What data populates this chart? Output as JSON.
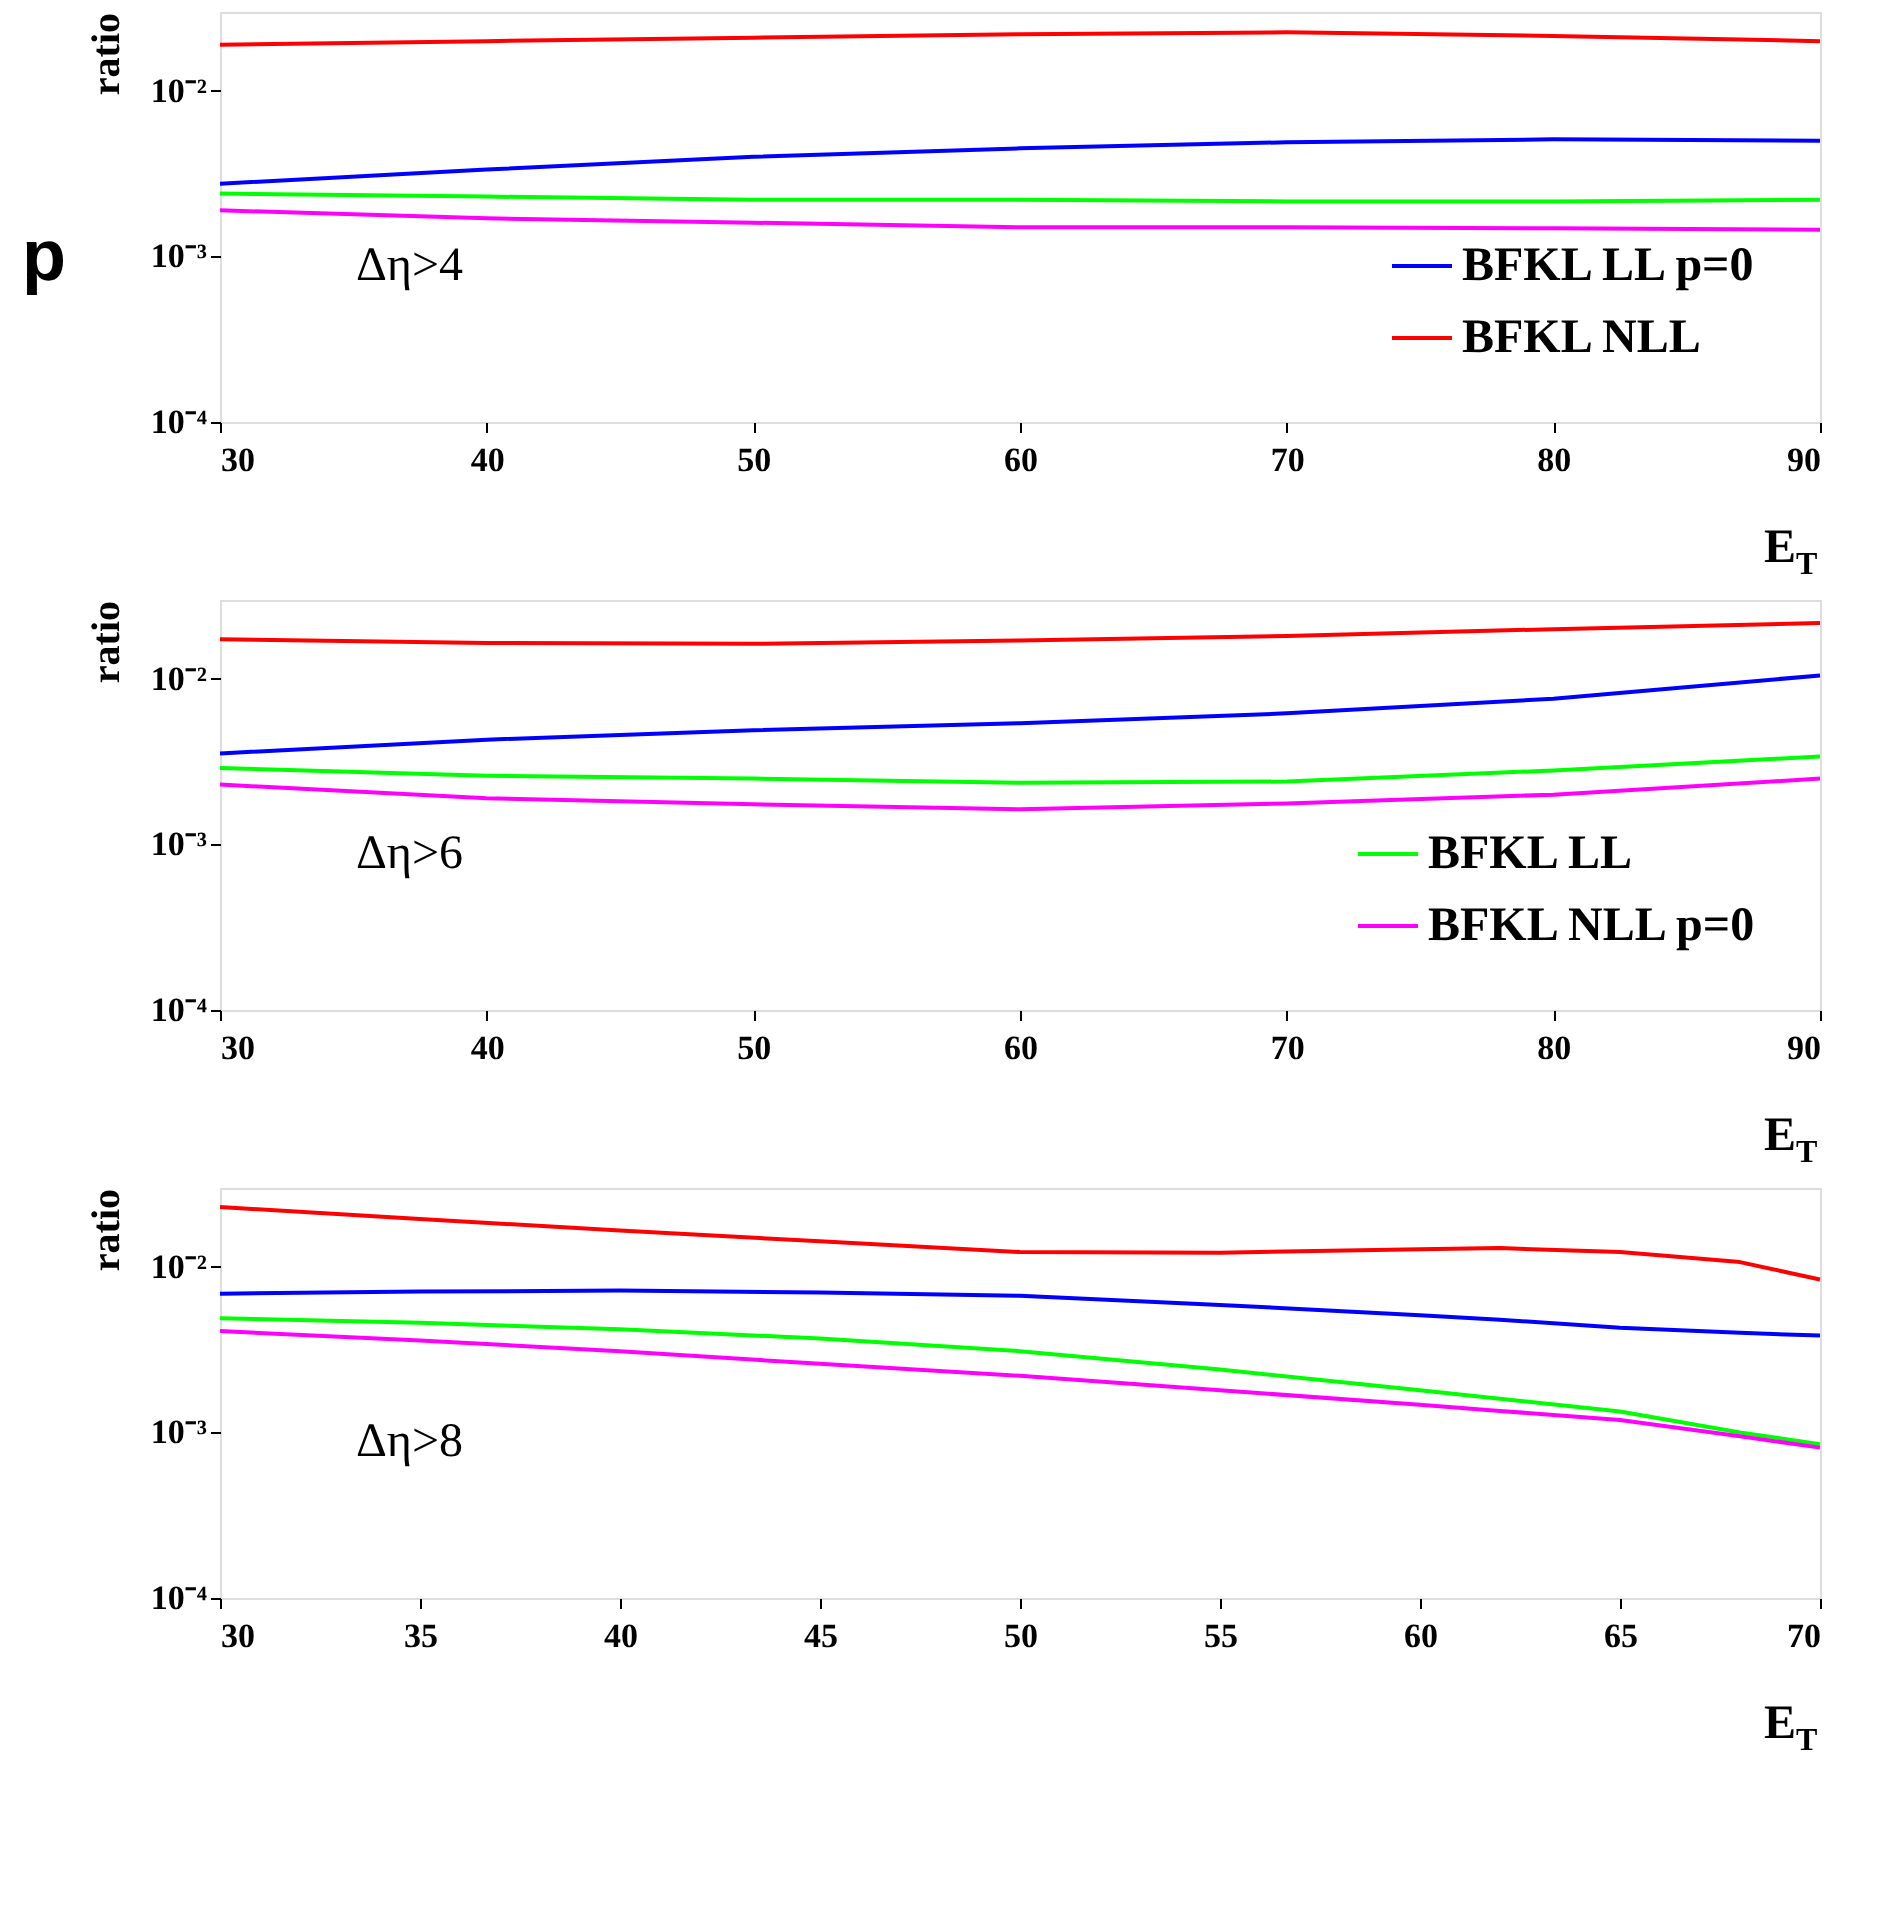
{
  "chart_data": [
    {
      "type": "line",
      "xlabel": "E$_{T}$",
      "ylabel": "ratio",
      "annotations": [
        "Δη>4",
        "p"
      ],
      "log": "y",
      "grid": false,
      "legend": "bottom right",
      "line_style": "solid",
      "marker": "none",
      "xlim": [
        30,
        90
      ],
      "xticks": [
        30,
        40,
        50,
        60,
        70,
        80,
        90
      ],
      "ylim": [
        0.0001,
        0.03
      ],
      "yticks": [
        {
          "value": 0.0001,
          "label": "10⁻⁴"
        },
        {
          "value": 0.001,
          "label": "10⁻³"
        },
        {
          "value": 0.01,
          "label": "10⁻²"
        }
      ],
      "x": [
        30,
        40,
        50,
        60,
        70,
        80,
        90
      ],
      "series": [
        {
          "name": "BFKL LL p=0",
          "color": "#0000ff",
          "values": [
            0.00275,
            0.00335,
            0.004,
            0.0045,
            0.0049,
            0.0051,
            0.005
          ]
        },
        {
          "name": "BFKL NLL",
          "color": "#ff0000",
          "values": [
            0.019,
            0.02,
            0.021,
            0.022,
            0.0226,
            0.0215,
            0.02
          ]
        },
        {
          "color": "#00ff00",
          "values": [
            0.0024,
            0.0023,
            0.0022,
            0.0022,
            0.00215,
            0.00215,
            0.0022
          ]
        },
        {
          "color": "#ff00ff",
          "values": [
            0.0019,
            0.0017,
            0.0016,
            0.0015,
            0.0015,
            0.00148,
            0.00145
          ]
        }
      ]
    },
    {
      "type": "line",
      "xlabel": "E$_{T}$",
      "ylabel": "ratio",
      "annotations": [
        "Δη>6"
      ],
      "log": "y",
      "grid": false,
      "legend": "bottom right",
      "line_style": "solid",
      "marker": "none",
      "xlim": [
        30,
        90
      ],
      "xticks": [
        30,
        40,
        50,
        60,
        70,
        80,
        90
      ],
      "ylim": [
        0.0001,
        0.03
      ],
      "yticks": [
        {
          "value": 0.0001,
          "label": "10⁻⁴"
        },
        {
          "value": 0.001,
          "label": "10⁻³"
        },
        {
          "value": 0.01,
          "label": "10⁻²"
        }
      ],
      "x": [
        30,
        40,
        50,
        60,
        70,
        80,
        90
      ],
      "series": [
        {
          "color": "#0000ff",
          "values": [
            0.00355,
            0.0043,
            0.0049,
            0.0054,
            0.0062,
            0.0076,
            0.0105
          ]
        },
        {
          "color": "#ff0000",
          "values": [
            0.0174,
            0.0165,
            0.0163,
            0.0171,
            0.0182,
            0.02,
            0.0218
          ]
        },
        {
          "name": "BFKL LL",
          "color": "#00ff00",
          "values": [
            0.0029,
            0.0026,
            0.0025,
            0.00236,
            0.0024,
            0.0028,
            0.0034
          ]
        },
        {
          "name": "BFKL NLL p=0",
          "color": "#ff00ff",
          "values": [
            0.0023,
            0.0019,
            0.00175,
            0.00163,
            0.00177,
            0.002,
            0.0025
          ]
        }
      ]
    },
    {
      "type": "line",
      "xlabel": "E$_{T}$",
      "ylabel": "ratio",
      "annotations": [
        "Δη>8"
      ],
      "log": "y",
      "grid": false,
      "line_style": "solid",
      "marker": "none",
      "xlim": [
        30,
        70
      ],
      "xticks": [
        30,
        35,
        40,
        45,
        50,
        55,
        60,
        65,
        70
      ],
      "ylim": [
        0.0001,
        0.03
      ],
      "yticks": [
        {
          "value": 0.0001,
          "label": "10⁻⁴"
        },
        {
          "value": 0.001,
          "label": "10⁻³"
        },
        {
          "value": 0.01,
          "label": "10⁻²"
        }
      ],
      "x": [
        30,
        35,
        40,
        45,
        50,
        55,
        60,
        62,
        65,
        68,
        70
      ],
      "series": [
        {
          "color": "#0000ff",
          "values": [
            0.0069,
            0.0071,
            0.0072,
            0.007,
            0.0067,
            0.0059,
            0.0051,
            0.0048,
            0.0043,
            0.004,
            0.00385
          ]
        },
        {
          "color": "#ff0000",
          "values": [
            0.023,
            0.0195,
            0.0166,
            0.0143,
            0.0123,
            0.0122,
            0.0128,
            0.013,
            0.0123,
            0.0107,
            0.0084
          ]
        },
        {
          "color": "#00ff00",
          "values": [
            0.0049,
            0.0046,
            0.0042,
            0.0037,
            0.0031,
            0.0024,
            0.0018,
            0.0016,
            0.00134,
            0.001,
            0.00085
          ]
        },
        {
          "color": "#ff00ff",
          "values": [
            0.0041,
            0.0036,
            0.0031,
            0.0026,
            0.0022,
            0.0018,
            0.00147,
            0.00135,
            0.00119,
            0.00095,
            0.00081
          ]
        }
      ]
    }
  ]
}
